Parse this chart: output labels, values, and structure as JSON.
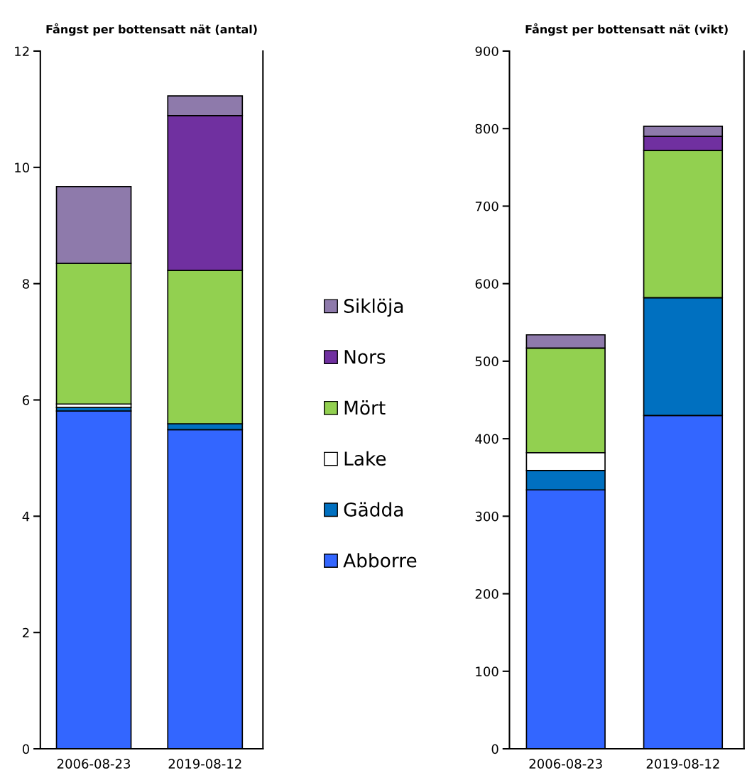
{
  "chart_data": [
    {
      "type": "bar",
      "stacked": true,
      "title": "Fångst per bottensatt nät (antal)",
      "categories": [
        "2006-08-23",
        "2019-08-12"
      ],
      "ylim": [
        0,
        12
      ],
      "yticks": [
        0,
        2,
        4,
        6,
        8,
        10,
        12
      ],
      "grid": false,
      "legend": "right",
      "series": [
        {
          "name": "Abborre",
          "color": "#3366ff",
          "values": [
            5.81,
            5.49
          ]
        },
        {
          "name": "Gädda",
          "color": "#0070c0",
          "values": [
            0.06,
            0.1
          ]
        },
        {
          "name": "Lake",
          "color": "#ffffff",
          "values": [
            0.06,
            0
          ]
        },
        {
          "name": "Mört",
          "color": "#92d050",
          "values": [
            2.42,
            2.64
          ]
        },
        {
          "name": "Nors",
          "color": "#7030a0",
          "values": [
            0,
            2.66
          ]
        },
        {
          "name": "Siklöja",
          "color": "#8e7aab",
          "values": [
            1.32,
            0.34
          ]
        }
      ]
    },
    {
      "type": "bar",
      "stacked": true,
      "title": "Fångst per bottensatt nät (vikt)",
      "categories": [
        "2006-08-23",
        "2019-08-12"
      ],
      "ylim": [
        0,
        900
      ],
      "yticks": [
        0,
        100,
        200,
        300,
        400,
        500,
        600,
        700,
        800,
        900
      ],
      "grid": false,
      "series": [
        {
          "color": "#3366ff",
          "values": [
            334,
            430
          ]
        },
        {
          "color": "#0070c0",
          "values": [
            25,
            152
          ]
        },
        {
          "color": "#ffffff",
          "values": [
            23,
            0
          ]
        },
        {
          "color": "#92d050",
          "values": [
            135,
            190
          ]
        },
        {
          "color": "#7030a0",
          "values": [
            0,
            18
          ]
        },
        {
          "color": "#8e7aab",
          "values": [
            17,
            13
          ]
        }
      ]
    }
  ]
}
